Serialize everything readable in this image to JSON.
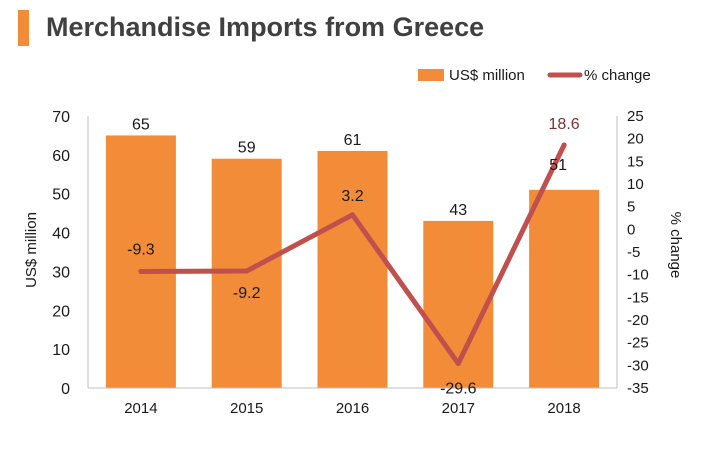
{
  "title": "Merchandise Imports from Greece",
  "colors": {
    "bar": "#f28c38",
    "line": "#c0504d",
    "title_accent": "#f28c38",
    "axis": "#bfbfbf",
    "text": "#1a1a1a",
    "line_label": "#7f3030"
  },
  "chart_data": {
    "type": "bar",
    "categories": [
      "2014",
      "2015",
      "2016",
      "2017",
      "2018"
    ],
    "series": [
      {
        "name": "US$ million",
        "type": "bar",
        "axis": "left",
        "values": [
          65,
          59,
          61,
          43,
          51
        ]
      },
      {
        "name": "% change",
        "type": "line",
        "axis": "right",
        "values": [
          -9.3,
          -9.2,
          3.2,
          -29.6,
          18.6
        ]
      }
    ],
    "bar_labels": [
      "65",
      "59",
      "61",
      "43",
      "51"
    ],
    "line_labels": [
      "-9.3",
      "-9.2",
      "3.2",
      "-29.6",
      "18.6"
    ],
    "ylabel": "US$ million",
    "y2label": "% change",
    "ylim": [
      0,
      70
    ],
    "y2lim": [
      -35,
      25
    ],
    "yticks": [
      "0",
      "10",
      "20",
      "30",
      "40",
      "50",
      "60",
      "70"
    ],
    "y2ticks": [
      "-35",
      "-30",
      "-25",
      "-20",
      "-15",
      "-10",
      "-5",
      "0",
      "5",
      "10",
      "15",
      "20",
      "25"
    ],
    "legend": {
      "position": "top-right",
      "items": [
        "US$ million",
        "% change"
      ]
    },
    "grid": false
  }
}
